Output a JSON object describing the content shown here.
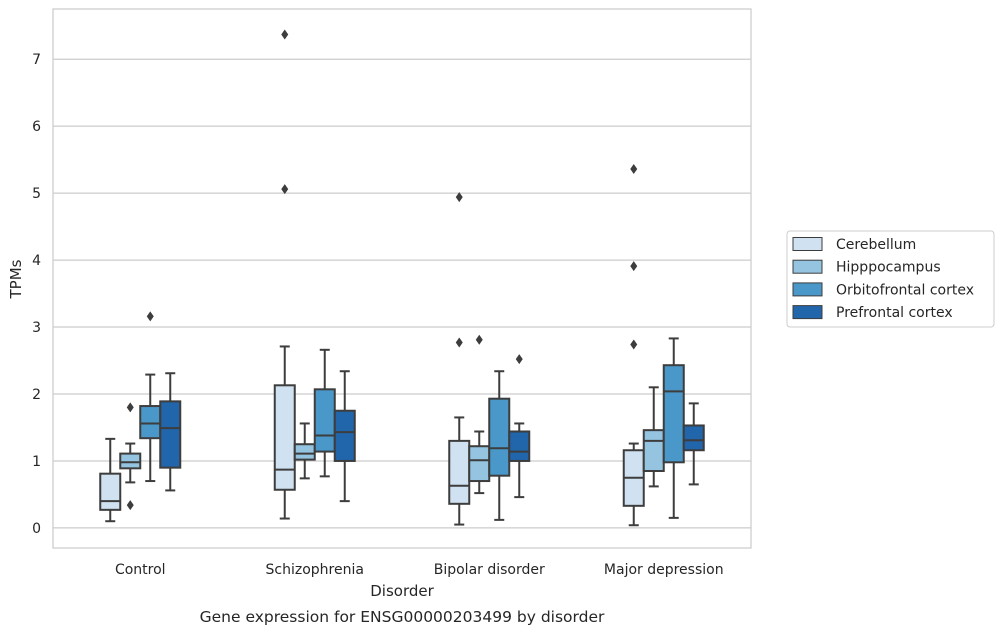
{
  "chart_data": {
    "type": "box",
    "title": "",
    "caption": "Gene expression for ENSG00000203499 by disorder",
    "xlabel": "Disorder",
    "ylabel": "TPMs",
    "categories": [
      "Control",
      "Schizophrenia",
      "Bipolar disorder",
      "Major depression"
    ],
    "ylim": [
      -0.3,
      7.75
    ],
    "yticks": [
      0,
      1,
      2,
      3,
      4,
      5,
      6,
      7
    ],
    "grid": "horizontal",
    "legend_position": "right",
    "series": [
      {
        "name": "Cerebellum",
        "color": "#d0e1f2",
        "boxes": [
          {
            "whisker_low": 0.1,
            "q1": 0.27,
            "median": 0.4,
            "q3": 0.81,
            "whisker_high": 1.33,
            "outliers": []
          },
          {
            "whisker_low": 0.14,
            "q1": 0.57,
            "median": 0.87,
            "q3": 2.13,
            "whisker_high": 2.71,
            "outliers": [
              5.06,
              7.37
            ]
          },
          {
            "whisker_low": 0.05,
            "q1": 0.36,
            "median": 0.63,
            "q3": 1.3,
            "whisker_high": 1.65,
            "outliers": [
              2.77,
              4.94
            ]
          },
          {
            "whisker_low": 0.04,
            "q1": 0.33,
            "median": 0.75,
            "q3": 1.16,
            "whisker_high": 1.26,
            "outliers": [
              2.74,
              3.91,
              5.36
            ]
          }
        ]
      },
      {
        "name": "Hipppocampus",
        "color": "#94c4df",
        "boxes": [
          {
            "whisker_low": 0.68,
            "q1": 0.89,
            "median": 0.98,
            "q3": 1.11,
            "whisker_high": 1.26,
            "outliers": [
              0.34,
              1.8
            ]
          },
          {
            "whisker_low": 0.74,
            "q1": 1.02,
            "median": 1.11,
            "q3": 1.25,
            "whisker_high": 1.56,
            "outliers": []
          },
          {
            "whisker_low": 0.52,
            "q1": 0.7,
            "median": 1.01,
            "q3": 1.22,
            "whisker_high": 1.44,
            "outliers": [
              2.81
            ]
          },
          {
            "whisker_low": 0.62,
            "q1": 0.85,
            "median": 1.3,
            "q3": 1.46,
            "whisker_high": 2.1,
            "outliers": []
          }
        ]
      },
      {
        "name": "Orbitofrontal cortex",
        "color": "#4a98c9",
        "boxes": [
          {
            "whisker_low": 0.7,
            "q1": 1.34,
            "median": 1.56,
            "q3": 1.82,
            "whisker_high": 2.29,
            "outliers": [
              3.16
            ]
          },
          {
            "whisker_low": 0.77,
            "q1": 1.14,
            "median": 1.38,
            "q3": 2.07,
            "whisker_high": 2.66,
            "outliers": []
          },
          {
            "whisker_low": 0.12,
            "q1": 0.78,
            "median": 1.19,
            "q3": 1.93,
            "whisker_high": 2.34,
            "outliers": []
          },
          {
            "whisker_low": 0.15,
            "q1": 0.98,
            "median": 2.04,
            "q3": 2.43,
            "whisker_high": 2.83,
            "outliers": []
          }
        ]
      },
      {
        "name": "Prefrontal cortex",
        "color": "#2165ab",
        "boxes": [
          {
            "whisker_low": 0.56,
            "q1": 0.9,
            "median": 1.49,
            "q3": 1.89,
            "whisker_high": 2.31,
            "outliers": []
          },
          {
            "whisker_low": 0.4,
            "q1": 1.0,
            "median": 1.43,
            "q3": 1.75,
            "whisker_high": 2.34,
            "outliers": []
          },
          {
            "whisker_low": 0.46,
            "q1": 1.0,
            "median": 1.14,
            "q3": 1.44,
            "whisker_high": 1.56,
            "outliers": [
              2.52
            ]
          },
          {
            "whisker_low": 0.65,
            "q1": 1.16,
            "median": 1.31,
            "q3": 1.53,
            "whisker_high": 1.86,
            "outliers": []
          }
        ]
      }
    ]
  }
}
